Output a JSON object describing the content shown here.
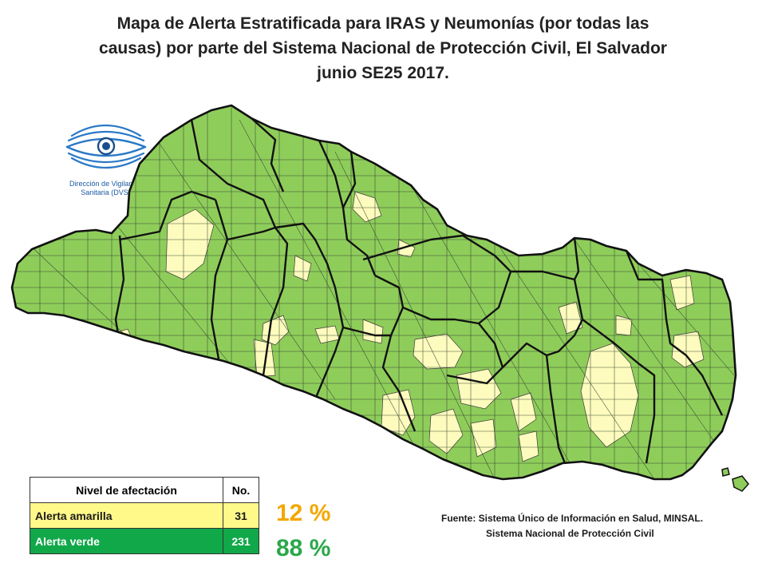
{
  "title": {
    "line1": "Mapa de Alerta Estratificada para IRAS y Neumonías (por todas las",
    "line2": "causas) por parte del Sistema Nacional de Protección Civil, El Salvador",
    "line3": "junio SE25 2017."
  },
  "logo": {
    "icon": "eye-icon",
    "caption_line1": "Dirección de Vigilancia",
    "caption_line2": "Sanitaria (DVS)"
  },
  "map": {
    "green_color": "#8fcd5b",
    "yellow_color": "#fdfbbd",
    "border_color": "#1b1b1b"
  },
  "legend": {
    "header_level": "Nivel de afectación",
    "header_count": "No.",
    "rows": [
      {
        "label": "Alerta amarilla",
        "count": "31",
        "color": "#fff98a"
      },
      {
        "label": "Alerta verde",
        "count": "231",
        "color": "#11a84a"
      }
    ]
  },
  "percentages": {
    "yellow": "12 %",
    "green": "88 %"
  },
  "source": {
    "line1": "Fuente: Sistema Único de Información en Salud, MINSAL.",
    "line2": "Sistema Nacional de Protección Civil"
  }
}
